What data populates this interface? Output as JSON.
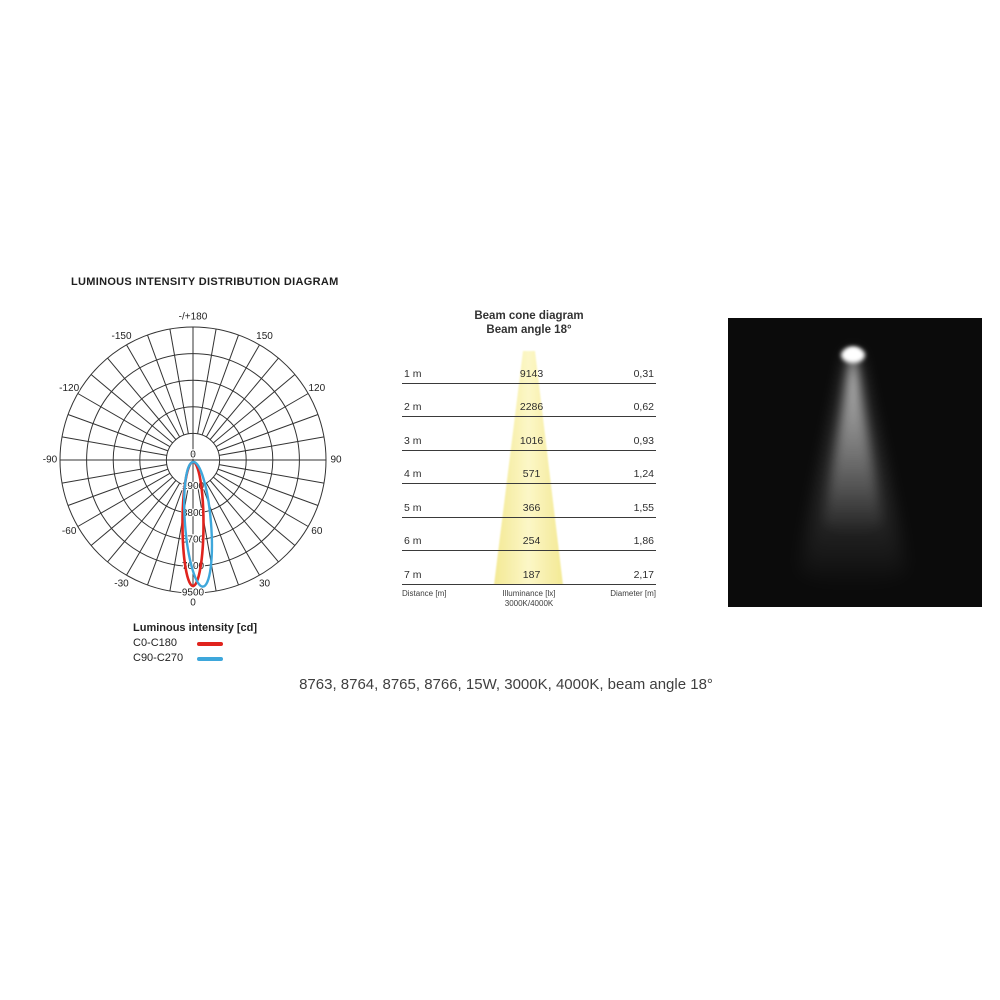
{
  "header": {
    "title": "LUMINOUS INTENSITY DISTRIBUTION DIAGRAM"
  },
  "polar": {
    "grid_color": "#333333",
    "label_color": "#222222",
    "center_label": "0",
    "ring_labels": [
      "1900",
      "3800",
      "5700",
      "7600",
      "9500"
    ],
    "angle_labels": [
      {
        "deg": 180,
        "label": "-/+180"
      },
      {
        "deg": -150,
        "label": "-150"
      },
      {
        "deg": 150,
        "label": "150"
      },
      {
        "deg": -120,
        "label": "-120"
      },
      {
        "deg": 120,
        "label": "120"
      },
      {
        "deg": -90,
        "label": "-90"
      },
      {
        "deg": 90,
        "label": "90"
      },
      {
        "deg": -60,
        "label": "-60"
      },
      {
        "deg": 60,
        "label": "60"
      },
      {
        "deg": -30,
        "label": "-30"
      },
      {
        "deg": 30,
        "label": "30"
      },
      {
        "deg": 0,
        "label": "0"
      }
    ],
    "series": [
      {
        "name": "C0-C180",
        "color": "#e0231d"
      },
      {
        "name": "C90-C270",
        "color": "#3ea7db"
      }
    ]
  },
  "legend": {
    "title": "Luminous intensity [cd]",
    "items": [
      {
        "label": "C0-C180",
        "color": "#e0231d"
      },
      {
        "label": "C90-C270",
        "color": "#3ea7db"
      }
    ]
  },
  "beam_cone": {
    "title": "Beam cone diagram",
    "subtitle": "Beam angle 18°",
    "cone_edge_color": "#f3e88f",
    "cone_center_color": "#fcf7c4",
    "rows": [
      {
        "distance": "1 m",
        "illuminance": "9143",
        "diameter": "0,31"
      },
      {
        "distance": "2 m",
        "illuminance": "2286",
        "diameter": "0,62"
      },
      {
        "distance": "3 m",
        "illuminance": "1016",
        "diameter": "0,93"
      },
      {
        "distance": "4 m",
        "illuminance": "571",
        "diameter": "1,24"
      },
      {
        "distance": "5 m",
        "illuminance": "366",
        "diameter": "1,55"
      },
      {
        "distance": "6 m",
        "illuminance": "254",
        "diameter": "1,86"
      },
      {
        "distance": "7 m",
        "illuminance": "187",
        "diameter": "2,17"
      }
    ],
    "footer": {
      "distance": "Distance [m]",
      "illuminance_line1": "Illuminance [lx]",
      "illuminance_line2": "3000K/4000K",
      "diameter": "Diameter [m]"
    }
  },
  "caption": {
    "text": "8763, 8764, 8765, 8766, 15W, 3000K, 4000K, beam angle 18°"
  },
  "chart_data": [
    {
      "type": "line",
      "subtype": "polar_luminous_intensity",
      "title": "LUMINOUS INTENSITY DISTRIBUTION DIAGRAM",
      "units": "cd",
      "angle_ticks_deg": [
        -150,
        -120,
        -90,
        -60,
        -30,
        0,
        30,
        60,
        90,
        120,
        150,
        180
      ],
      "angle_grid_step_deg": 10,
      "radial_ticks_cd": [
        0,
        1900,
        3800,
        5700,
        7600,
        9500
      ],
      "radial_max_cd": 9500,
      "legend_position": "bottom-left",
      "series": [
        {
          "name": "C0-C180",
          "color": "#e0231d",
          "peak_cd": 9500,
          "peak_angle_deg": 0,
          "approx_half_width_deg": 9
        },
        {
          "name": "C90-C270",
          "color": "#3ea7db",
          "peak_cd": 9400,
          "peak_angle_deg": 4,
          "approx_half_width_deg": 11
        }
      ]
    },
    {
      "type": "table",
      "title": "Beam cone diagram",
      "subtitle": "Beam angle 18°",
      "columns": [
        "Distance [m]",
        "Illuminance [lx] 3000K/4000K",
        "Diameter [m]"
      ],
      "rows": [
        [
          "1 m",
          9143,
          "0,31"
        ],
        [
          "2 m",
          2286,
          "0,62"
        ],
        [
          "3 m",
          1016,
          "0,93"
        ],
        [
          "4 m",
          571,
          "1,24"
        ],
        [
          "5 m",
          366,
          "1,55"
        ],
        [
          "6 m",
          254,
          "1,86"
        ],
        [
          "7 m",
          187,
          "2,17"
        ]
      ]
    }
  ]
}
